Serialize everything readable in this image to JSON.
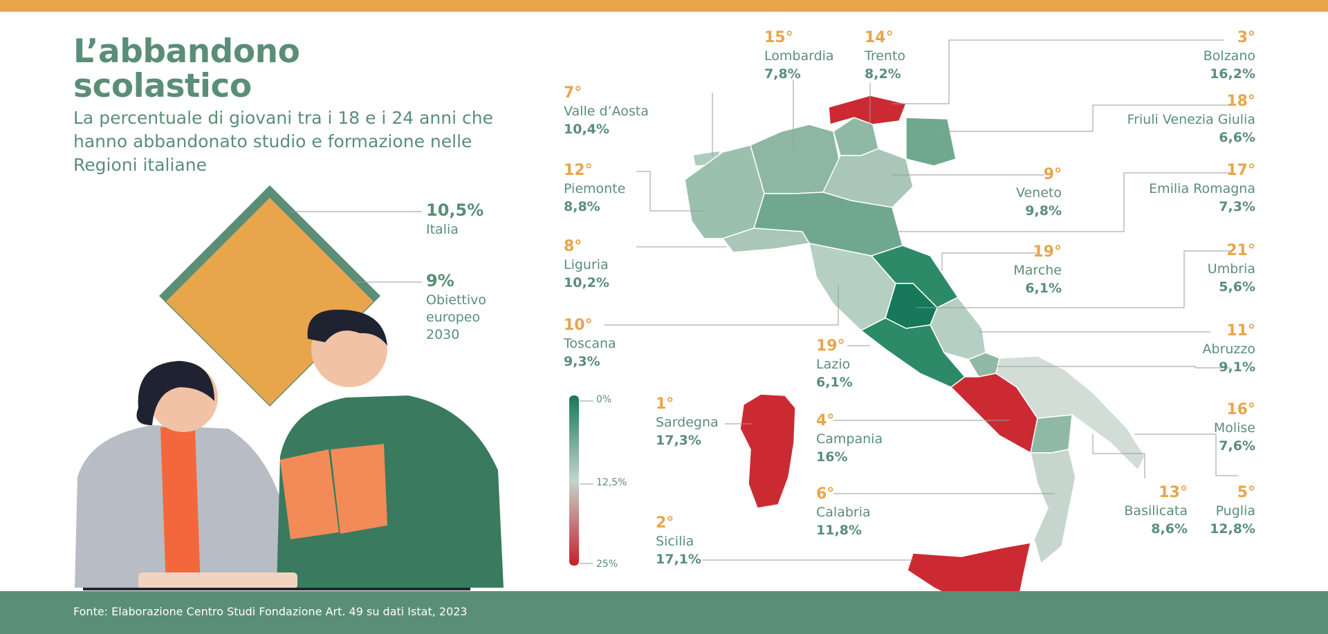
{
  "header": {
    "title_line1": "L’abbandono",
    "title_line2": "scolastico",
    "subtitle": "La percentuale di giovani tra i 18 e i 24 anni che hanno abbandonato studio e formazione nelle Regioni italiane"
  },
  "benchmarks": {
    "italia": {
      "value": "10,5%",
      "label": "Italia"
    },
    "obiettivo": {
      "value": "9%",
      "label_1": "Obiettivo",
      "label_2": "europeo",
      "label_3": "2030"
    }
  },
  "scale": {
    "min_label": "0%",
    "mid_label": "12,5%",
    "max_label": "25%",
    "colors": {
      "low": "#17785a",
      "mid": "#c4d4cc",
      "high": "#c81f2a"
    }
  },
  "regions": {
    "lombardia": {
      "rank": "15°",
      "name": "Lombardia",
      "value": "7,8%"
    },
    "trento": {
      "rank": "14°",
      "name": "Trento",
      "value": "8,2%"
    },
    "bolzano": {
      "rank": "3°",
      "name": "Bolzano",
      "value": "16,2%"
    },
    "valle_aosta": {
      "rank": "7°",
      "name": "Valle d’Aosta",
      "value": "10,4%"
    },
    "friuli": {
      "rank": "18°",
      "name": "Friuli Venezia Giulia",
      "value": "6,6%"
    },
    "piemonte": {
      "rank": "12°",
      "name": "Piemonte",
      "value": "8,8%"
    },
    "veneto": {
      "rank": "9°",
      "name": "Veneto",
      "value": "9,8%"
    },
    "emilia": {
      "rank": "17°",
      "name": "Emilia Romagna",
      "value": "7,3%"
    },
    "liguria": {
      "rank": "8°",
      "name": "Liguria",
      "value": "10,2%"
    },
    "marche": {
      "rank": "19°",
      "name": "Marche",
      "value": "6,1%"
    },
    "umbria": {
      "rank": "21°",
      "name": "Umbria",
      "value": "5,6%"
    },
    "toscana": {
      "rank": "10°",
      "name": "Toscana",
      "value": "9,3%"
    },
    "abruzzo": {
      "rank": "11°",
      "name": "Abruzzo",
      "value": "9,1%"
    },
    "lazio": {
      "rank": "19°",
      "name": "Lazio",
      "value": "6,1%"
    },
    "sardegna": {
      "rank": "1°",
      "name": "Sardegna",
      "value": "17,3%"
    },
    "molise": {
      "rank": "16°",
      "name": "Molise",
      "value": "7,6%"
    },
    "campania": {
      "rank": "4°",
      "name": "Campania",
      "value": "16%"
    },
    "calabria": {
      "rank": "6°",
      "name": "Calabria",
      "value": "11,8%"
    },
    "basilicata": {
      "rank": "13°",
      "name": "Basilicata",
      "value": "8,6%"
    },
    "puglia": {
      "rank": "5°",
      "name": "Puglia",
      "value": "12,8%"
    },
    "sicilia": {
      "rank": "2°",
      "name": "Sicilia",
      "value": "17,1%"
    }
  },
  "footer": {
    "source": "Fonte: Elaborazione Centro Studi Fondazione Art. 49 su dati Istat, 2023"
  },
  "colors": {
    "accent": "#e8a54b",
    "brand": "#5a8e76",
    "red": "#c81f2a"
  }
}
